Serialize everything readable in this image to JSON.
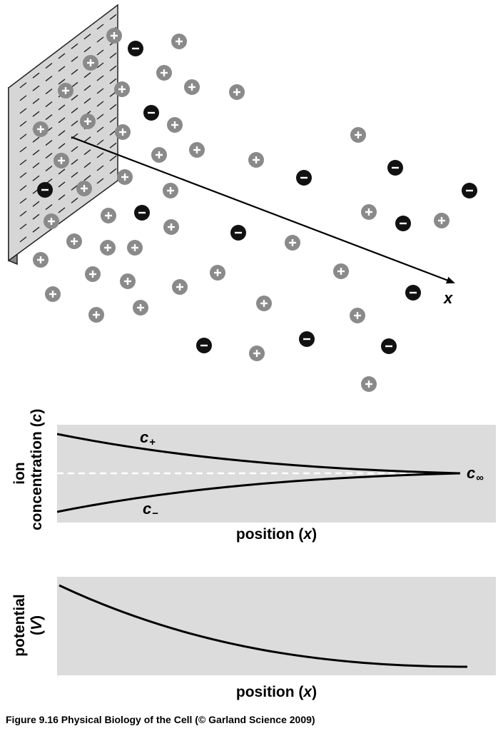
{
  "scene": {
    "axis_label": "x",
    "plus_symbol": "+",
    "minus_symbol": "−",
    "colors": {
      "plus_ion": "#8a8a8a",
      "minus_ion": "#111111",
      "plate_face": "#d6d6d6",
      "plate_edge": "#888888"
    }
  },
  "concentration_plot": {
    "ylabel": "ion",
    "ylabel_line2": "concentration",
    "ylabel_var": "c",
    "xlabel": "position",
    "xlabel_var": "x",
    "c_plus": "c",
    "c_plus_sub": "+",
    "c_minus": "c",
    "c_minus_sub": "−",
    "c_inf": "c",
    "c_inf_sub": "∞"
  },
  "potential_plot": {
    "ylabel": "potential",
    "ylabel_var": "V",
    "xlabel": "position",
    "xlabel_var": "x"
  },
  "caption": "Figure 9.16  Physical Biology of the Cell (© Garland Science 2009)"
}
